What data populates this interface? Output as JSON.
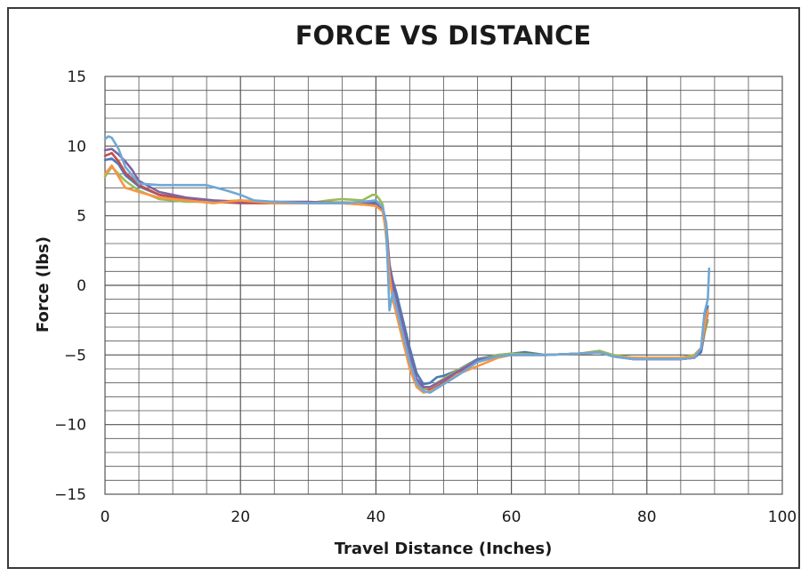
{
  "chart_data": {
    "type": "line",
    "title": "FORCE VS DISTANCE",
    "xlabel": "Travel Distance (Inches)",
    "ylabel": "Force (lbs)",
    "xlim": [
      0,
      100
    ],
    "ylim": [
      -15,
      15
    ],
    "xticks": [
      0,
      20,
      40,
      60,
      80,
      100
    ],
    "yticks": [
      15,
      10,
      5,
      0,
      -5,
      -10,
      -15
    ],
    "yticklabels": [
      "15",
      "10",
      "5",
      "0",
      "−5",
      "−10",
      "−15"
    ],
    "grid": true,
    "grid_x_step": 5,
    "grid_y_step": 1,
    "legend": "none",
    "colors": {
      "frame": "#3a3a3a",
      "grid": "#555555",
      "series": [
        "#4e7ab5",
        "#c0504d",
        "#9bbb59",
        "#8064a2",
        "#f79646",
        "#6fa8d6"
      ]
    },
    "series": [
      {
        "x": [
          0,
          1,
          2,
          3,
          5,
          8,
          12,
          16,
          20,
          25,
          30,
          35,
          38,
          40,
          41,
          41.5,
          42,
          42.5,
          43,
          44,
          45,
          46,
          47,
          48,
          49,
          50,
          52,
          55,
          58,
          60,
          62,
          65,
          70,
          73,
          75,
          78,
          80,
          85,
          87,
          88,
          88.5,
          88.8,
          89
        ],
        "y": [
          9.0,
          9.1,
          8.7,
          7.9,
          7.1,
          6.5,
          6.2,
          6.0,
          6.0,
          6.0,
          5.9,
          5.9,
          5.9,
          5.9,
          5.5,
          4.0,
          1.5,
          0.3,
          -0.5,
          -2.5,
          -4.5,
          -6.3,
          -7.1,
          -7.0,
          -6.6,
          -6.5,
          -6.1,
          -5.3,
          -5.0,
          -4.9,
          -4.8,
          -5.0,
          -4.9,
          -4.8,
          -5.1,
          -5.2,
          -5.3,
          -5.3,
          -5.2,
          -4.8,
          -3.5,
          -2.0,
          -1.5
        ]
      },
      {
        "x": [
          0,
          1,
          2,
          3,
          5,
          8,
          12,
          16,
          20,
          25,
          30,
          35,
          38,
          40,
          41,
          41.5,
          42,
          42.5,
          43,
          44,
          45,
          46,
          47,
          48,
          50,
          52,
          55,
          58,
          60,
          65,
          70,
          73,
          75,
          78,
          80,
          85,
          87,
          88,
          88.5,
          89
        ],
        "y": [
          9.3,
          9.5,
          8.9,
          8.1,
          7.2,
          6.5,
          6.2,
          6.0,
          5.9,
          5.9,
          5.9,
          5.9,
          5.8,
          5.8,
          5.4,
          4.2,
          1.0,
          -0.5,
          -1.5,
          -3.5,
          -5.5,
          -7.0,
          -7.4,
          -7.5,
          -7.0,
          -6.3,
          -5.5,
          -5.1,
          -5.0,
          -5.0,
          -4.9,
          -4.8,
          -5.1,
          -5.3,
          -5.3,
          -5.3,
          -5.2,
          -4.5,
          -3.0,
          -2.0
        ]
      },
      {
        "x": [
          0,
          1,
          2,
          3,
          5,
          8,
          12,
          16,
          20,
          25,
          30,
          33,
          35,
          38,
          39.5,
          40,
          40.5,
          41,
          41.5,
          42,
          42.5,
          43,
          44,
          45,
          46,
          47,
          48,
          50,
          52,
          55,
          58,
          60,
          65,
          70,
          73,
          75,
          78,
          80,
          85,
          87,
          88,
          88.5,
          89
        ],
        "y": [
          7.8,
          8.5,
          8.0,
          7.5,
          6.8,
          6.2,
          6.0,
          6.0,
          6.1,
          6.0,
          5.9,
          6.1,
          6.2,
          6.1,
          6.5,
          6.5,
          6.2,
          5.8,
          3.5,
          0.5,
          -1.0,
          -2.0,
          -4.0,
          -5.8,
          -7.1,
          -7.5,
          -7.3,
          -6.7,
          -6.1,
          -5.4,
          -5.0,
          -4.9,
          -5.0,
          -4.9,
          -4.7,
          -5.0,
          -5.2,
          -5.2,
          -5.2,
          -5.0,
          -4.5,
          -3.5,
          -2.5
        ]
      },
      {
        "x": [
          0,
          1,
          2,
          3,
          4,
          5,
          8,
          12,
          16,
          20,
          25,
          30,
          35,
          38,
          40,
          41,
          41.5,
          42,
          42.5,
          43,
          44,
          45,
          46,
          47,
          48,
          50,
          52,
          55,
          58,
          60,
          65,
          70,
          73,
          75,
          78,
          80,
          85,
          87,
          88,
          88.5,
          89
        ],
        "y": [
          9.7,
          9.8,
          9.4,
          8.9,
          8.3,
          7.5,
          6.7,
          6.3,
          6.1,
          6.0,
          6.0,
          6.0,
          5.9,
          5.9,
          5.8,
          5.6,
          4.5,
          1.5,
          0.0,
          -1.0,
          -3.0,
          -5.0,
          -6.7,
          -7.3,
          -7.3,
          -6.8,
          -6.2,
          -5.4,
          -5.1,
          -5.0,
          -5.0,
          -4.9,
          -4.8,
          -5.1,
          -5.3,
          -5.3,
          -5.3,
          -5.2,
          -4.6,
          -3.2,
          -2.0
        ]
      },
      {
        "x": [
          0,
          1,
          2,
          3,
          5,
          8,
          12,
          16,
          20,
          25,
          30,
          35,
          38,
          40,
          41,
          41.5,
          42,
          42.5,
          43,
          44,
          45,
          46,
          47,
          48,
          50,
          52,
          55,
          58,
          60,
          65,
          70,
          73,
          75,
          78,
          80,
          85,
          87,
          88,
          88.5,
          89
        ],
        "y": [
          8.0,
          8.6,
          7.8,
          7.0,
          6.7,
          6.3,
          6.1,
          5.9,
          6.1,
          5.9,
          5.9,
          5.9,
          5.8,
          5.7,
          5.3,
          3.8,
          0.8,
          -1.0,
          -2.0,
          -4.0,
          -6.0,
          -7.3,
          -7.7,
          -7.6,
          -7.1,
          -6.4,
          -5.8,
          -5.2,
          -5.0,
          -5.0,
          -4.9,
          -4.8,
          -5.1,
          -5.2,
          -5.2,
          -5.2,
          -5.1,
          -4.5,
          -3.0,
          -1.8
        ]
      },
      {
        "x": [
          0,
          0.5,
          1,
          2,
          3,
          5,
          8,
          12,
          15,
          18,
          20,
          22,
          25,
          30,
          35,
          38,
          40,
          41,
          41.5,
          42,
          42.5,
          43,
          44,
          45,
          46,
          47,
          48,
          50,
          52,
          55,
          58,
          60,
          65,
          70,
          73,
          75,
          78,
          80,
          85,
          87,
          88,
          88.5,
          89,
          89.2
        ],
        "y": [
          10.5,
          10.7,
          10.6,
          9.8,
          8.5,
          7.3,
          7.2,
          7.2,
          7.2,
          6.8,
          6.5,
          6.1,
          6.0,
          5.9,
          5.9,
          6.0,
          6.1,
          5.6,
          4.5,
          -1.8,
          -0.5,
          -1.5,
          -3.5,
          -5.5,
          -7.0,
          -7.6,
          -7.7,
          -7.1,
          -6.5,
          -5.5,
          -5.1,
          -5.0,
          -5.0,
          -4.9,
          -4.8,
          -5.1,
          -5.3,
          -5.3,
          -5.3,
          -5.2,
          -4.5,
          -2.0,
          -1.0,
          1.2
        ]
      }
    ]
  }
}
